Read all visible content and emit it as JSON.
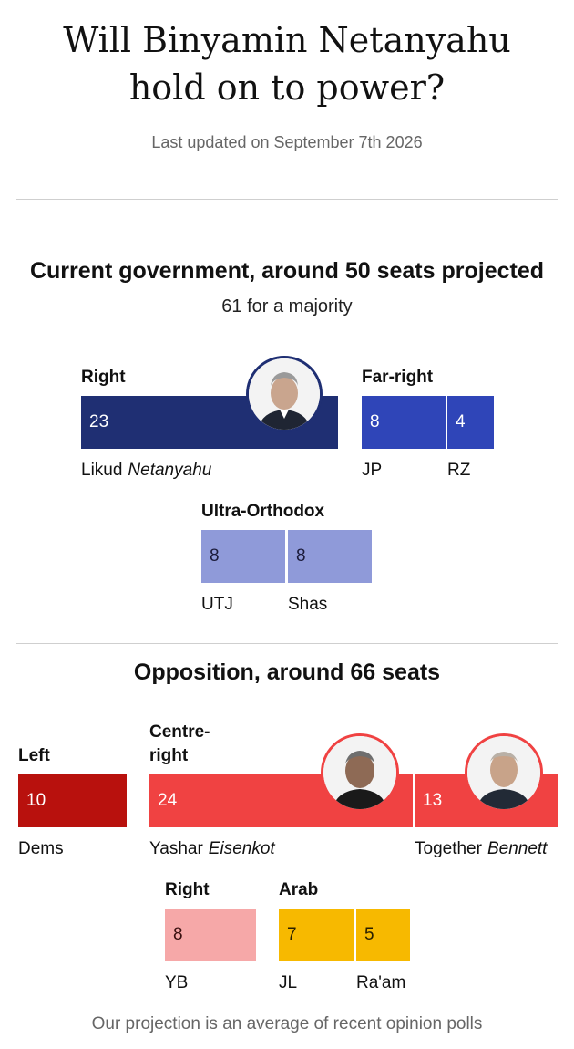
{
  "header": {
    "title_line1": "Will Binyamin Netanyahu",
    "title_line2": "hold on to power?",
    "updated": "Last updated on September 7th 2026"
  },
  "government": {
    "title": "Current government, around 50 seats projected",
    "subtitle": "61 for a majority",
    "groups": {
      "right": "Right",
      "far_right": "Far-right",
      "ultra_orthodox": "Ultra-Orthodox"
    },
    "parties": {
      "likud": {
        "name": "Likud",
        "leader": "Netanyahu",
        "seats": "23"
      },
      "jp": {
        "name": "JP",
        "seats": "8"
      },
      "rz": {
        "name": "RZ",
        "seats": "4"
      },
      "utj": {
        "name": "UTJ",
        "seats": "8"
      },
      "shas": {
        "name": "Shas",
        "seats": "8"
      }
    }
  },
  "opposition": {
    "title": "Opposition, around 66 seats",
    "groups": {
      "left": "Left",
      "centre_right_1": "Centre-",
      "centre_right_2": "right",
      "right": "Right",
      "arab": "Arab"
    },
    "parties": {
      "dems": {
        "name": "Dems",
        "seats": "10"
      },
      "yashar": {
        "name": "Yashar",
        "leader": "Eisenkot",
        "seats": "24"
      },
      "together": {
        "name": "Together",
        "leader": "Bennett",
        "seats": "13"
      },
      "yb": {
        "name": "YB",
        "seats": "8"
      },
      "jl": {
        "name": "JL",
        "seats": "7"
      },
      "raam": {
        "name": "Ra'am",
        "seats": "5"
      }
    }
  },
  "footer": "Our projection is an average of recent opinion polls",
  "colors": {
    "likud": "#1f2f73",
    "far_right": "#2f45b8",
    "ultra_orthodox": "#8f9ad9",
    "left": "#b8110d",
    "centre_right": "#f04242",
    "opp_right": "#f6a8a8",
    "arab": "#f7b900"
  },
  "chart_data": {
    "type": "bar",
    "unit": "seats",
    "categories": [
      "Likud",
      "JP",
      "RZ",
      "UTJ",
      "Shas",
      "Dems",
      "Yashar",
      "Together",
      "YB",
      "JL",
      "Ra'am"
    ],
    "values": [
      23,
      8,
      4,
      8,
      8,
      10,
      24,
      13,
      8,
      7,
      5
    ],
    "blocs": [
      {
        "name": "Current government, around 50 seats projected",
        "parties": [
          "Likud",
          "JP",
          "RZ",
          "UTJ",
          "Shas"
        ]
      },
      {
        "name": "Opposition, around 66 seats",
        "parties": [
          "Dems",
          "Yashar",
          "Together",
          "YB",
          "JL",
          "Ra'am"
        ]
      }
    ],
    "majority_threshold": 61,
    "legend": "none",
    "grid": false
  }
}
